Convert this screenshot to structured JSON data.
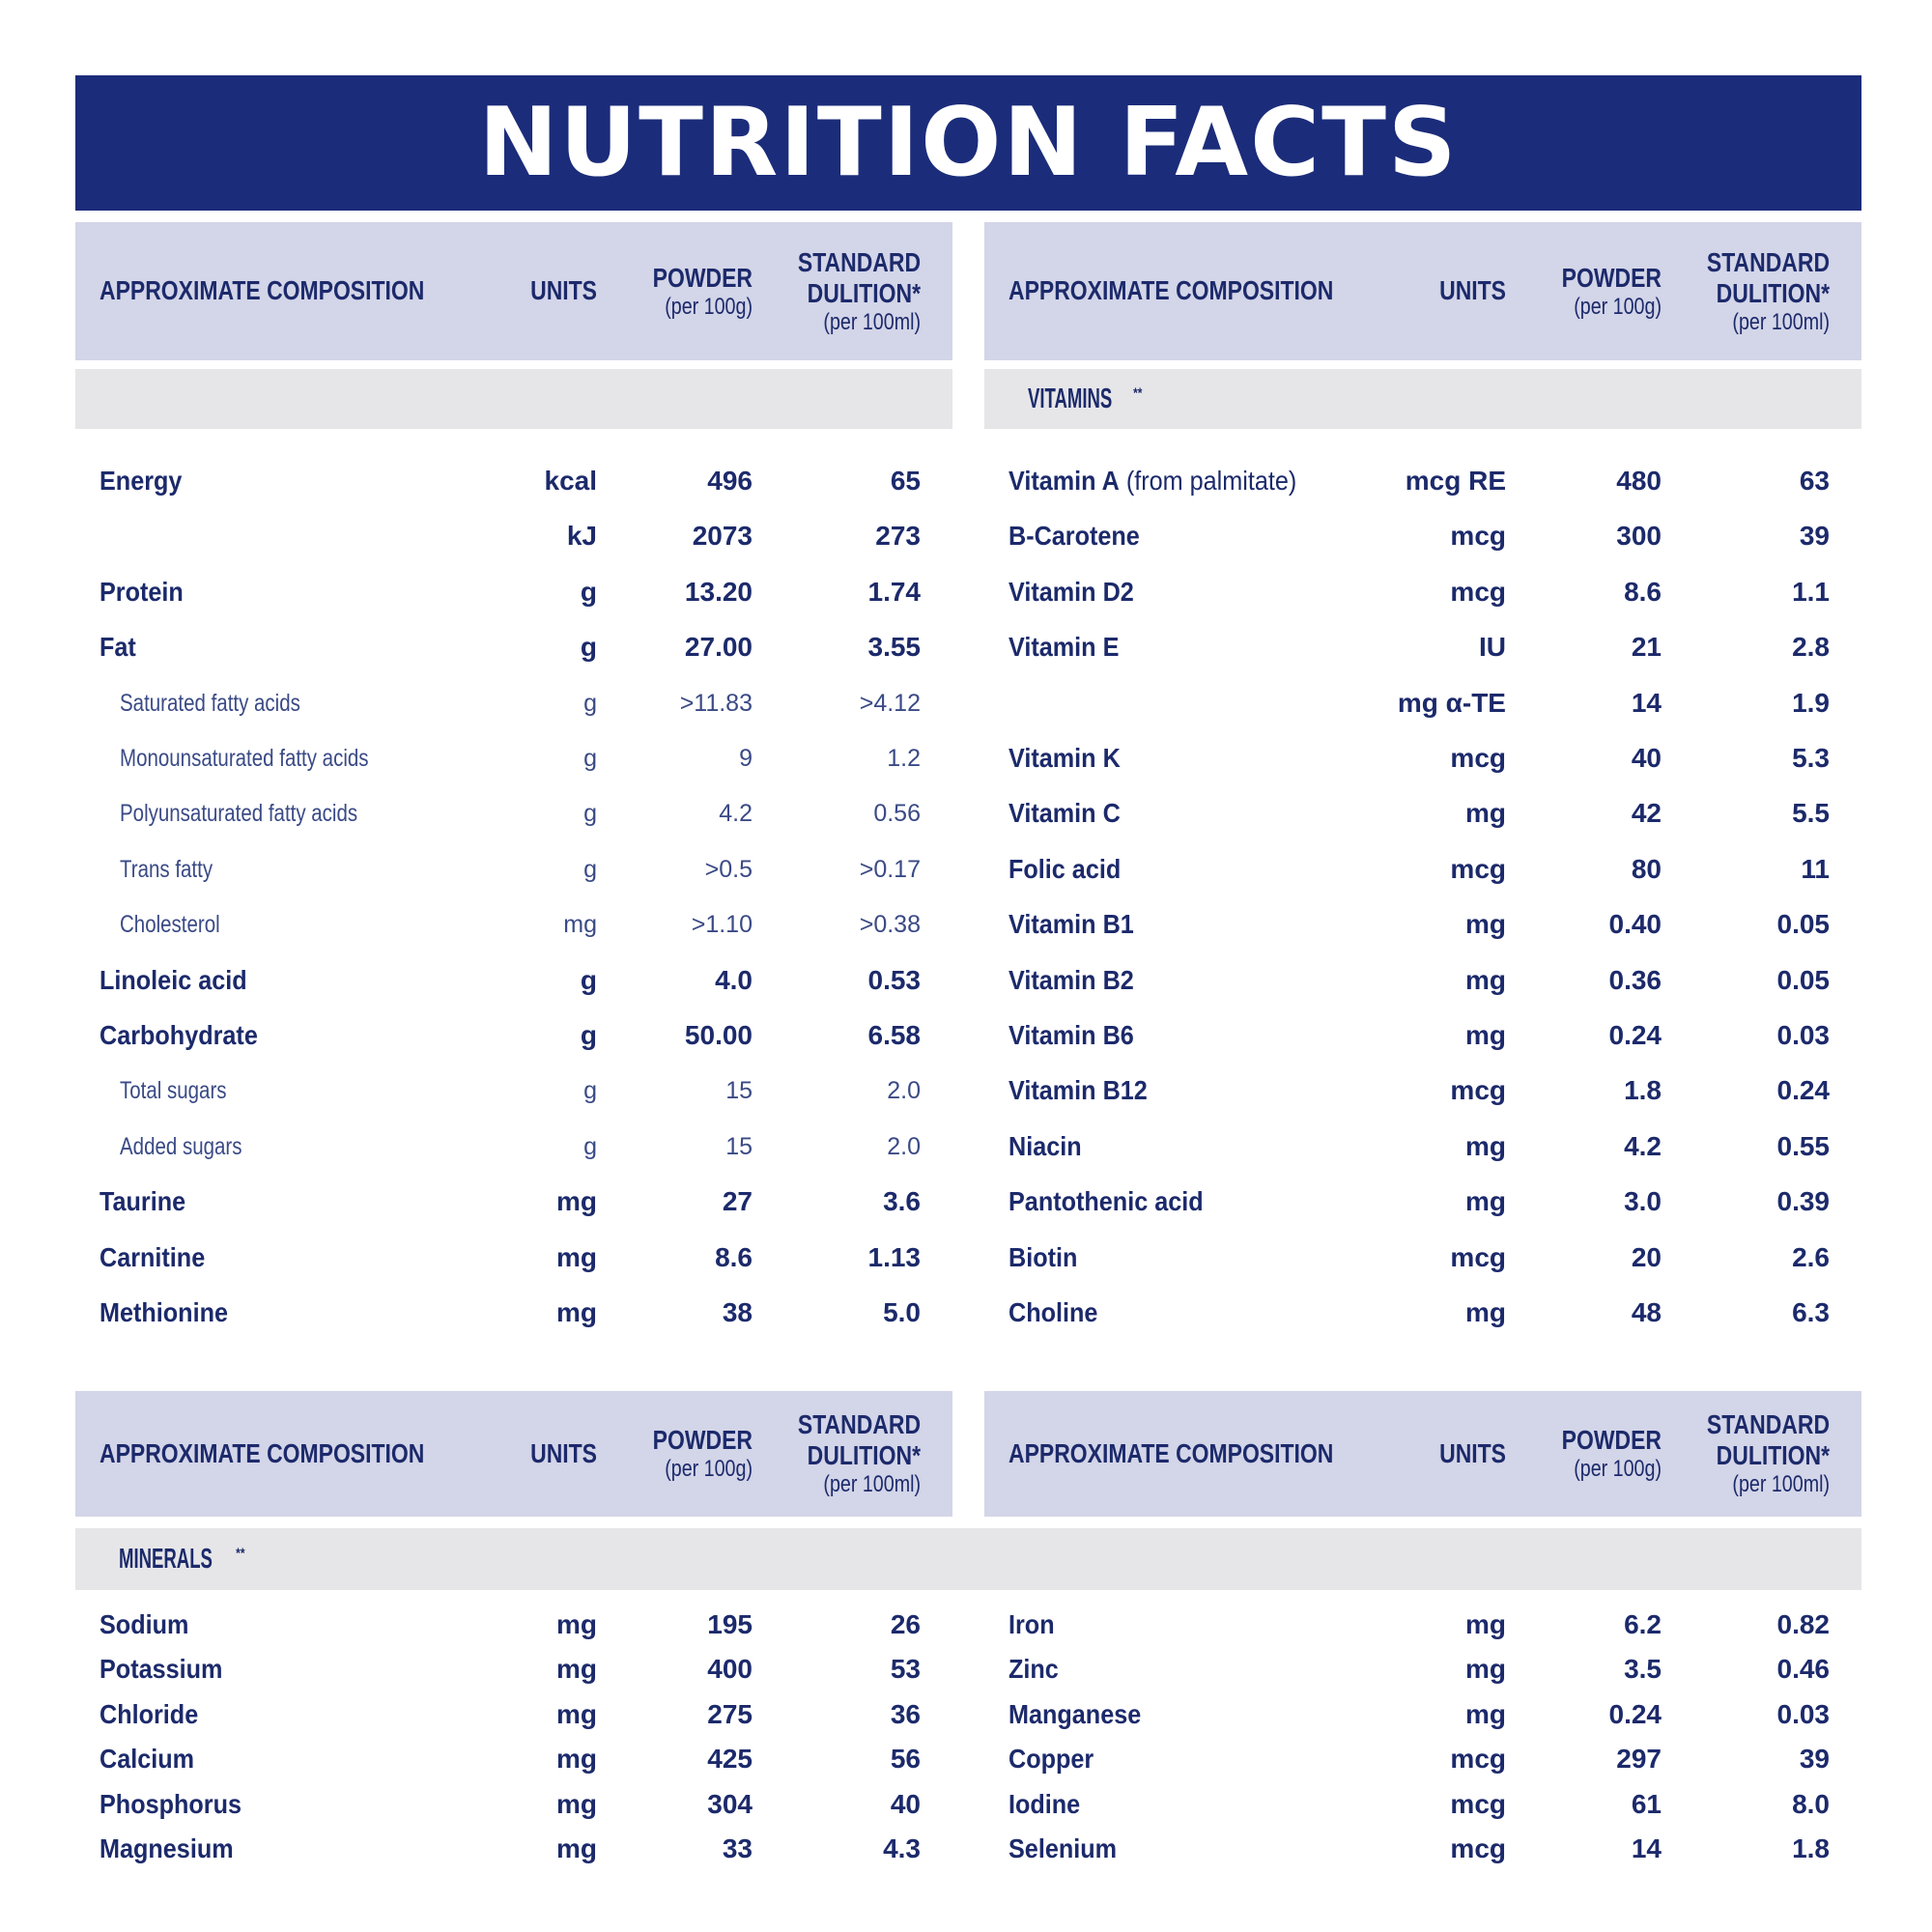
{
  "title": "NUTRITION FACTS",
  "header": {
    "composition": "APPROXIMATE COMPOSITION",
    "units": "UNITS",
    "powder": "POWDER",
    "powder_sub": "(per 100g)",
    "standard": "STANDARD",
    "dilution": "DULITION*",
    "dilution_sub": "(per 100ml)"
  },
  "panels": {
    "top_left": {
      "section": "",
      "rows": [
        {
          "name": "Energy",
          "unit": "kcal",
          "powder": "496",
          "standard": "65"
        },
        {
          "name": "",
          "unit": "kJ",
          "powder": "2073",
          "standard": "273"
        },
        {
          "name": "Protein",
          "unit": "g",
          "powder": "13.20",
          "standard": "1.74"
        },
        {
          "name": "Fat",
          "unit": "g",
          "powder": "27.00",
          "standard": "3.55"
        },
        {
          "name": "Saturated fatty acids",
          "unit": "g",
          "powder": ">11.83",
          "standard": ">4.12"
        },
        {
          "name": "Monounsaturated fatty acids",
          "unit": "g",
          "powder": "9",
          "standard": "1.2"
        },
        {
          "name": "Polyunsaturated fatty acids",
          "unit": "g",
          "powder": "4.2",
          "standard": "0.56"
        },
        {
          "name": "Trans fatty",
          "unit": "g",
          "powder": ">0.5",
          "standard": ">0.17"
        },
        {
          "name": "Cholesterol",
          "unit": "mg",
          "powder": ">1.10",
          "standard": ">0.38"
        },
        {
          "name": "Linoleic acid",
          "unit": "g",
          "powder": "4.0",
          "standard": "0.53"
        },
        {
          "name": "Carbohydrate",
          "unit": "g",
          "powder": "50.00",
          "standard": "6.58"
        },
        {
          "name": "Total sugars",
          "unit": "g",
          "powder": "15",
          "standard": "2.0"
        },
        {
          "name": "Added sugars",
          "unit": "g",
          "powder": "15",
          "standard": "2.0"
        },
        {
          "name": "Taurine",
          "unit": "mg",
          "powder": "27",
          "standard": "3.6"
        },
        {
          "name": "Carnitine",
          "unit": "mg",
          "powder": "8.6",
          "standard": "1.13"
        },
        {
          "name": "Methionine",
          "unit": "mg",
          "powder": "38",
          "standard": "5.0"
        }
      ]
    },
    "top_right": {
      "section": "VITAMINS",
      "section_mark": "**",
      "rows": [
        {
          "name": "Vitamin A",
          "name_extra": " (from palmitate)",
          "unit": "mcg RE",
          "powder": "480",
          "standard": "63"
        },
        {
          "name": "B-Carotene",
          "unit": "mcg",
          "powder": "300",
          "standard": "39"
        },
        {
          "name": "Vitamin D2",
          "unit": "mcg",
          "powder": "8.6",
          "standard": "1.1"
        },
        {
          "name": "Vitamin E",
          "unit": "IU",
          "powder": "21",
          "standard": "2.8"
        },
        {
          "name": "",
          "unit": "mg α-TE",
          "powder": "14",
          "standard": "1.9"
        },
        {
          "name": "Vitamin K",
          "unit": "mcg",
          "powder": "40",
          "standard": "5.3"
        },
        {
          "name": "Vitamin C",
          "unit": "mg",
          "powder": "42",
          "standard": "5.5"
        },
        {
          "name": "Folic acid",
          "unit": "mcg",
          "powder": "80",
          "standard": "11"
        },
        {
          "name": "Vitamin B1",
          "unit": "mg",
          "powder": "0.40",
          "standard": "0.05"
        },
        {
          "name": "Vitamin B2",
          "unit": "mg",
          "powder": "0.36",
          "standard": "0.05"
        },
        {
          "name": "Vitamin B6",
          "unit": "mg",
          "powder": "0.24",
          "standard": "0.03"
        },
        {
          "name": "Vitamin B12",
          "unit": "mcg",
          "powder": "1.8",
          "standard": "0.24"
        },
        {
          "name": "Niacin",
          "unit": "mg",
          "powder": "4.2",
          "standard": "0.55"
        },
        {
          "name": "Pantothenic acid",
          "unit": "mg",
          "powder": "3.0",
          "standard": "0.39"
        },
        {
          "name": "Biotin",
          "unit": "mcg",
          "powder": "20",
          "standard": "2.6"
        },
        {
          "name": "Choline",
          "unit": "mg",
          "powder": "48",
          "standard": "6.3"
        }
      ]
    },
    "bottom_left": {
      "section": "MINERALS",
      "section_mark": "**",
      "rows": [
        {
          "name": "Sodium",
          "unit": "mg",
          "powder": "195",
          "standard": "26"
        },
        {
          "name": "Potassium",
          "unit": "mg",
          "powder": "400",
          "standard": "53"
        },
        {
          "name": "Chloride",
          "unit": "mg",
          "powder": "275",
          "standard": "36"
        },
        {
          "name": "Calcium",
          "unit": "mg",
          "powder": "425",
          "standard": "56"
        },
        {
          "name": "Phosphorus",
          "unit": "mg",
          "powder": "304",
          "standard": "40"
        },
        {
          "name": "Magnesium",
          "unit": "mg",
          "powder": "33",
          "standard": "4.3"
        }
      ]
    },
    "bottom_right": {
      "rows": [
        {
          "name": "Iron",
          "unit": "mg",
          "powder": "6.2",
          "standard": "0.82"
        },
        {
          "name": "Zinc",
          "unit": "mg",
          "powder": "3.5",
          "standard": "0.46"
        },
        {
          "name": "Manganese",
          "unit": "mg",
          "powder": "0.24",
          "standard": "0.03"
        },
        {
          "name": "Copper",
          "unit": "mcg",
          "powder": "297",
          "standard": "39"
        },
        {
          "name": "Iodine",
          "unit": "mcg",
          "powder": "61",
          "standard": "8.0"
        },
        {
          "name": "Selenium",
          "unit": "mcg",
          "powder": "14",
          "standard": "1.8"
        }
      ]
    }
  }
}
